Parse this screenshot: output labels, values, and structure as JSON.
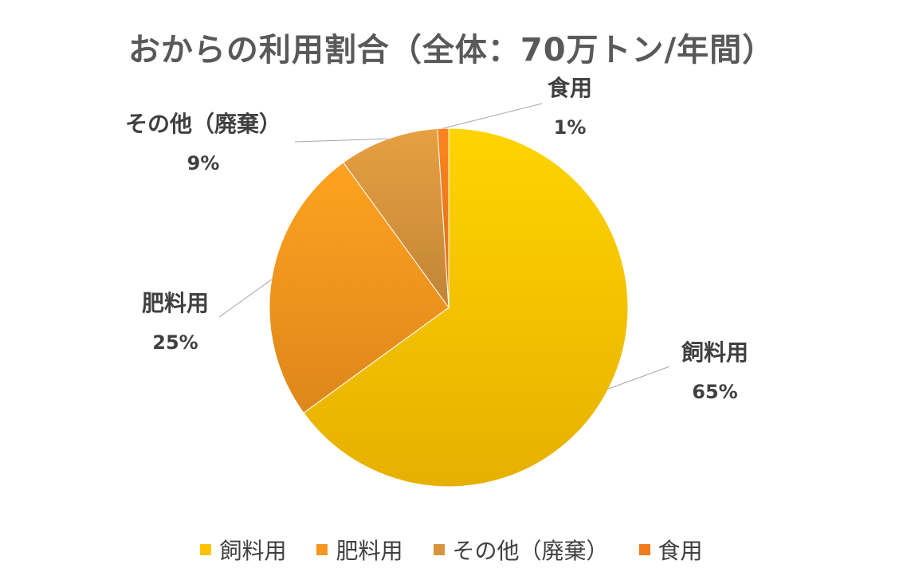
{
  "chart_data": {
    "type": "pie",
    "title": "おからの利用割合（全体：70万トン/年間）",
    "slices": [
      {
        "label": "飼料用",
        "value": 65,
        "display": "65%",
        "color": "#FFC400"
      },
      {
        "label": "肥料用",
        "value": 25,
        "display": "25%",
        "color": "#F5961E"
      },
      {
        "label": "その他（廃棄）",
        "value": 9,
        "display": "9%",
        "color": "#D6943C"
      },
      {
        "label": "食用",
        "value": 1,
        "display": "1%",
        "color": "#F07A1E"
      }
    ],
    "legend_position": "bottom",
    "start_angle_deg": 0,
    "direction": "clockwise"
  }
}
